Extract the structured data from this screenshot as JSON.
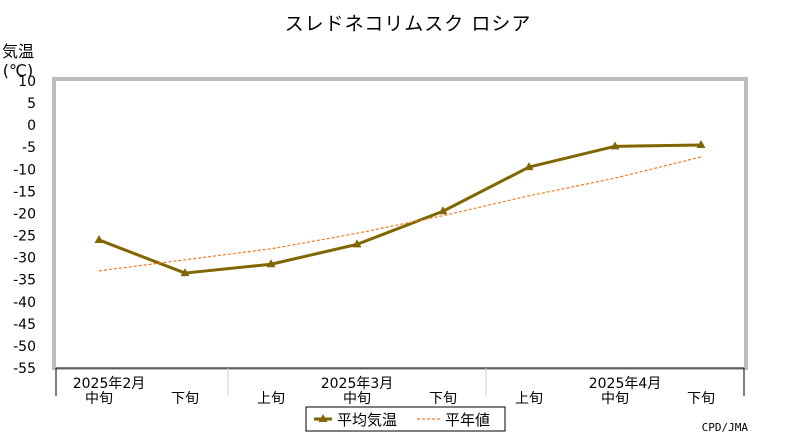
{
  "chart_data": {
    "type": "line",
    "title": "スレドネコリムスク ロシア",
    "ylabel": "気温",
    "yunit": "(℃)",
    "ylim": [
      -55,
      10
    ],
    "yticks": [
      "10",
      "5",
      "0",
      "-5",
      "-10",
      "-15",
      "-20",
      "-25",
      "-30",
      "-35",
      "-40",
      "-45",
      "-50",
      "-55"
    ],
    "categories": [
      "中旬",
      "下旬",
      "上旬",
      "中旬",
      "下旬",
      "上旬",
      "中旬",
      "下旬"
    ],
    "month_labels": [
      "2025年2月",
      "2025年3月",
      "2025年4月"
    ],
    "grid": true,
    "legend_position": "bottom",
    "series": [
      {
        "name": "平均気温",
        "color": "#806600",
        "style": "solid-triangle",
        "values": [
          -26,
          -33.5,
          -31.5,
          -27,
          -19.5,
          -9.5,
          -4.8,
          -4.5
        ]
      },
      {
        "name": "平年値",
        "color": "#ee7d1e",
        "style": "dashed",
        "values": [
          -33,
          -30.5,
          -28,
          -24.5,
          -20.5,
          -16,
          -12,
          -7.2
        ]
      }
    ],
    "credit": "CPD/JMA"
  }
}
